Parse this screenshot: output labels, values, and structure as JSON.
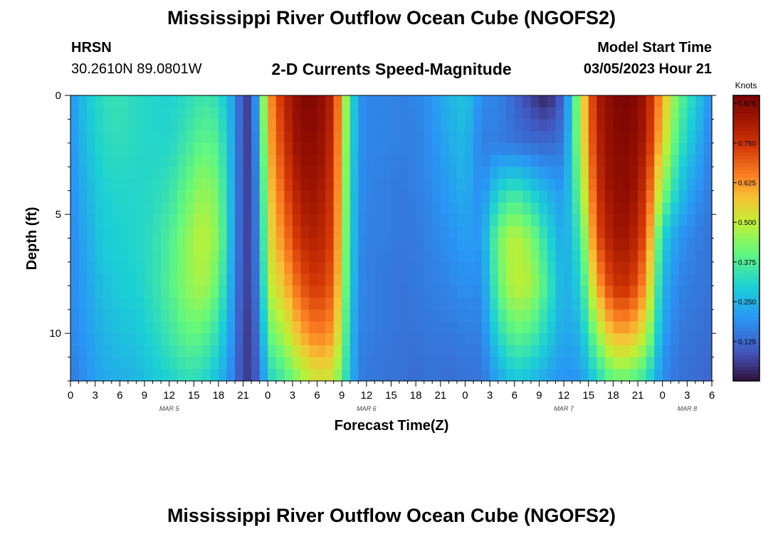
{
  "header": {
    "title": "Mississippi River Outflow Ocean Cube (NGOFS2)",
    "station_name": "HRSN",
    "station_coords": "30.2610N  89.0801W",
    "subtitle": "2-D Currents Speed-Magnitude",
    "model_start_label": "Model Start Time",
    "model_start_value": "03/05/2023 Hour 21"
  },
  "footer": {
    "title": "Mississippi River Outflow Ocean Cube (NGOFS2)"
  },
  "chart_data": {
    "type": "heatmap",
    "title": "2-D Currents Speed-Magnitude",
    "xlabel": "Forecast Time(Z)",
    "ylabel": "Depth (ft)",
    "colorbar_label": "Knots",
    "colorbar_ticks": [
      "0.125",
      "0.250",
      "0.375",
      "0.500",
      "0.625",
      "0.750",
      "0.875"
    ],
    "colorbar_range": [
      0.0,
      0.9
    ],
    "x_tick_labels": [
      "0",
      "3",
      "6",
      "9",
      "12",
      "15",
      "18",
      "21",
      "0",
      "3",
      "6",
      "9",
      "12",
      "15",
      "18",
      "21",
      "0",
      "3",
      "6",
      "9",
      "12",
      "15",
      "18",
      "21",
      "0",
      "3",
      "6"
    ],
    "x_range_hours": [
      0,
      78
    ],
    "date_labels": [
      {
        "label": "MAR 5",
        "hour": 12
      },
      {
        "label": "MAR 6",
        "hour": 36
      },
      {
        "label": "MAR 7",
        "hour": 60
      },
      {
        "label": "MAR 8",
        "hour": 75
      }
    ],
    "y_tick_labels": [
      "0",
      "5",
      "10"
    ],
    "y_range_ft": [
      0,
      12
    ],
    "profile_depths_ft": [
      0,
      2,
      4,
      6,
      8,
      10,
      12
    ],
    "profile_times_hours": [
      0,
      2,
      4,
      6,
      8,
      10,
      12,
      14,
      16,
      18,
      20,
      21,
      22,
      23,
      24,
      26,
      28,
      30,
      32,
      34,
      35,
      36,
      38,
      40,
      42,
      44,
      46,
      48,
      50,
      52,
      54,
      56,
      58,
      60,
      62,
      64,
      66,
      68,
      70,
      72,
      74,
      76,
      78
    ],
    "speed_profiles_knots": [
      [
        0.2,
        0.19,
        0.18,
        0.18,
        0.18,
        0.17,
        0.15
      ],
      [
        0.28,
        0.27,
        0.25,
        0.23,
        0.22,
        0.21,
        0.19
      ],
      [
        0.33,
        0.32,
        0.3,
        0.29,
        0.27,
        0.25,
        0.23
      ],
      [
        0.34,
        0.33,
        0.31,
        0.3,
        0.29,
        0.27,
        0.24
      ],
      [
        0.32,
        0.32,
        0.31,
        0.31,
        0.3,
        0.28,
        0.25
      ],
      [
        0.31,
        0.31,
        0.32,
        0.33,
        0.33,
        0.31,
        0.28
      ],
      [
        0.3,
        0.31,
        0.34,
        0.37,
        0.38,
        0.35,
        0.3
      ],
      [
        0.32,
        0.35,
        0.4,
        0.44,
        0.44,
        0.4,
        0.33
      ],
      [
        0.35,
        0.4,
        0.46,
        0.5,
        0.48,
        0.4,
        0.32
      ],
      [
        0.33,
        0.38,
        0.42,
        0.44,
        0.4,
        0.33,
        0.26
      ],
      [
        0.2,
        0.2,
        0.2,
        0.19,
        0.18,
        0.17,
        0.15
      ],
      [
        0.06,
        0.06,
        0.06,
        0.06,
        0.06,
        0.05,
        0.05
      ],
      [
        0.07,
        0.07,
        0.08,
        0.08,
        0.08,
        0.07,
        0.07
      ],
      [
        0.3,
        0.26,
        0.22,
        0.2,
        0.18,
        0.15,
        0.12
      ],
      [
        0.6,
        0.58,
        0.55,
        0.52,
        0.48,
        0.4,
        0.3
      ],
      [
        0.78,
        0.75,
        0.7,
        0.65,
        0.58,
        0.48,
        0.36
      ],
      [
        0.88,
        0.86,
        0.82,
        0.77,
        0.7,
        0.6,
        0.45
      ],
      [
        0.88,
        0.86,
        0.83,
        0.8,
        0.75,
        0.66,
        0.52
      ],
      [
        0.78,
        0.76,
        0.74,
        0.72,
        0.69,
        0.62,
        0.5
      ],
      [
        0.35,
        0.34,
        0.33,
        0.32,
        0.31,
        0.29,
        0.27
      ],
      [
        0.2,
        0.2,
        0.19,
        0.19,
        0.18,
        0.17,
        0.16
      ],
      [
        0.17,
        0.17,
        0.17,
        0.16,
        0.16,
        0.16,
        0.15
      ],
      [
        0.17,
        0.17,
        0.16,
        0.16,
        0.15,
        0.15,
        0.14
      ],
      [
        0.16,
        0.16,
        0.15,
        0.15,
        0.14,
        0.14,
        0.14
      ],
      [
        0.17,
        0.16,
        0.16,
        0.15,
        0.15,
        0.14,
        0.13
      ],
      [
        0.2,
        0.19,
        0.18,
        0.17,
        0.16,
        0.15,
        0.14
      ],
      [
        0.25,
        0.23,
        0.21,
        0.19,
        0.17,
        0.15,
        0.13
      ],
      [
        0.28,
        0.26,
        0.24,
        0.21,
        0.19,
        0.16,
        0.14
      ],
      [
        0.18,
        0.16,
        0.18,
        0.2,
        0.18,
        0.16,
        0.14
      ],
      [
        0.17,
        0.16,
        0.3,
        0.42,
        0.4,
        0.32,
        0.22
      ],
      [
        0.12,
        0.14,
        0.35,
        0.5,
        0.5,
        0.4,
        0.28
      ],
      [
        0.06,
        0.13,
        0.3,
        0.44,
        0.48,
        0.38,
        0.26
      ],
      [
        0.02,
        0.12,
        0.24,
        0.32,
        0.36,
        0.3,
        0.22
      ],
      [
        0.12,
        0.15,
        0.2,
        0.22,
        0.23,
        0.22,
        0.19
      ],
      [
        0.5,
        0.48,
        0.42,
        0.35,
        0.3,
        0.25,
        0.2
      ],
      [
        0.8,
        0.78,
        0.75,
        0.7,
        0.6,
        0.45,
        0.3
      ],
      [
        0.88,
        0.87,
        0.85,
        0.82,
        0.75,
        0.6,
        0.4
      ],
      [
        0.9,
        0.88,
        0.86,
        0.82,
        0.76,
        0.6,
        0.4
      ],
      [
        0.82,
        0.8,
        0.75,
        0.7,
        0.62,
        0.5,
        0.33
      ],
      [
        0.6,
        0.55,
        0.45,
        0.3,
        0.25,
        0.22,
        0.18
      ],
      [
        0.4,
        0.35,
        0.28,
        0.2,
        0.17,
        0.15,
        0.14
      ],
      [
        0.3,
        0.25,
        0.2,
        0.16,
        0.15,
        0.14,
        0.13
      ],
      [
        0.18,
        0.16,
        0.15,
        0.14,
        0.14,
        0.13,
        0.12
      ]
    ]
  }
}
